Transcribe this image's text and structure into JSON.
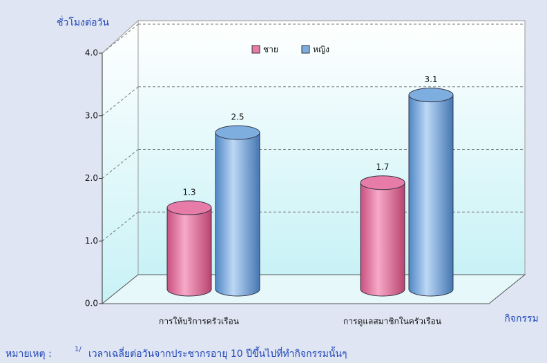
{
  "chart_data": {
    "type": "bar3d",
    "y_label": "ชั่วโมงต่อวัน",
    "x_label": "กิจกรรม",
    "categories": [
      "การให้บริการครัวเรือน",
      "การดูแลสมาชิกในครัวเรือน"
    ],
    "series": [
      {
        "name": "ชาย",
        "color": "#e87ca8",
        "values": [
          1.3,
          1.7
        ]
      },
      {
        "name": "หญิง",
        "color": "#7eaee0",
        "values": [
          2.5,
          3.1
        ]
      }
    ],
    "ylim": [
      0,
      4
    ],
    "yticks": [
      {
        "value": 0,
        "label": "0.0"
      },
      {
        "value": 1,
        "label": "1.0"
      },
      {
        "value": 2,
        "label": "2.0"
      },
      {
        "value": 3,
        "label": "3.0"
      },
      {
        "value": 4,
        "label": "4.0"
      }
    ],
    "grid": true,
    "legend": "top",
    "note": {
      "label": "หมายเหตุ :",
      "superscript": "1/",
      "text": "เวลาเฉลี่ยต่อวันจากประชากรอายุ 10 ปีขึ้นไปที่ทำกิจกรรมนั้นๆ"
    }
  }
}
